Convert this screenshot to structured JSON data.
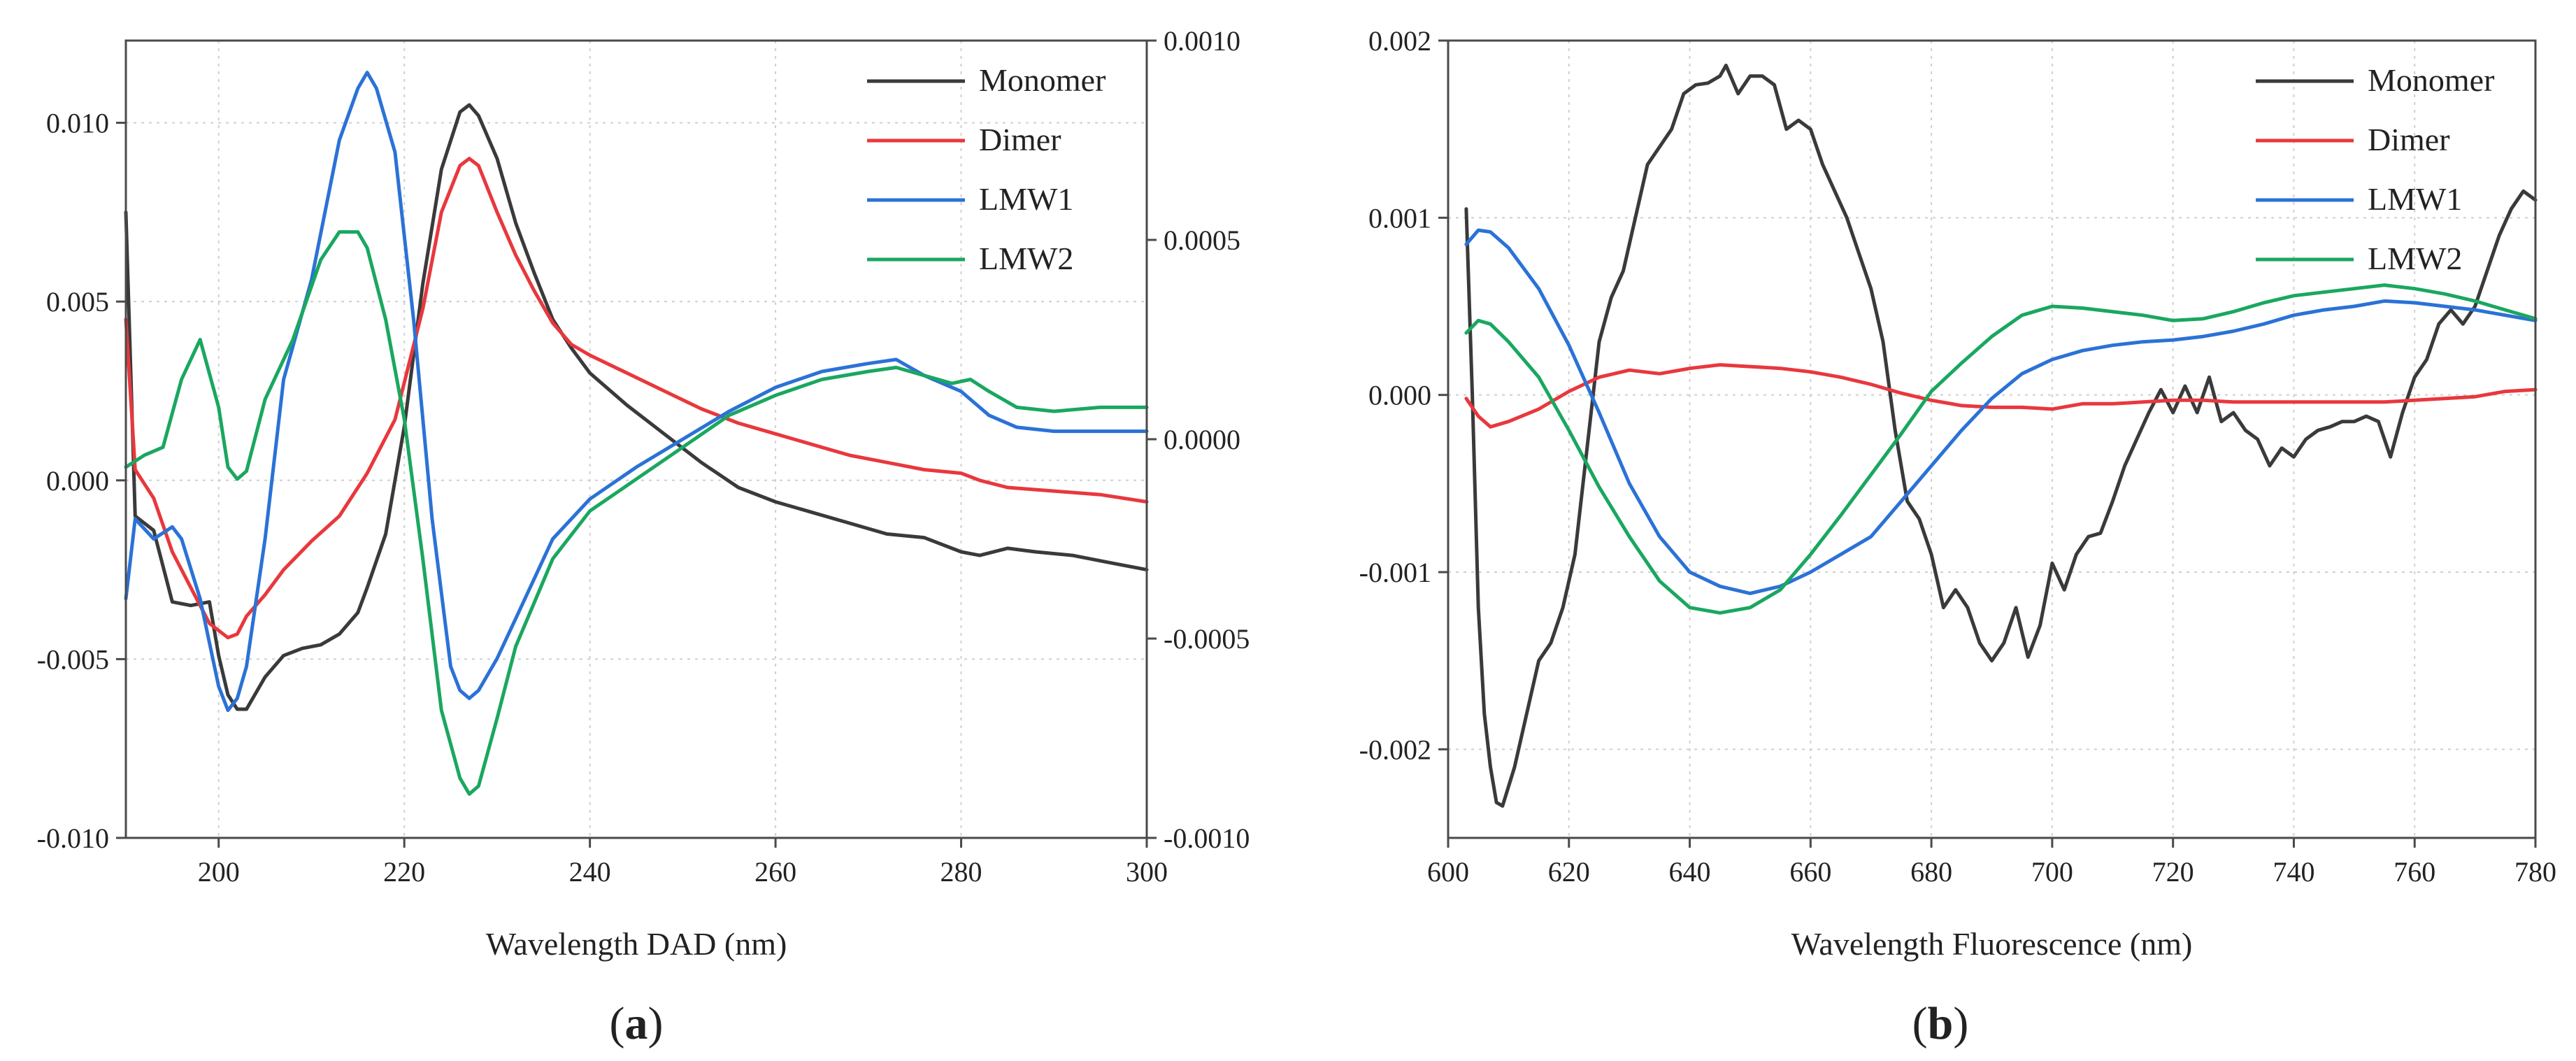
{
  "chart_data": [
    {
      "type": "line",
      "panel_label_prefix": "(",
      "panel_label": "a",
      "panel_label_suffix": ")",
      "xlabel": "Wavelength DAD (nm)",
      "xlim": [
        190,
        300
      ],
      "ylim": [
        -0.01,
        0.0123
      ],
      "y2lim": [
        -0.001,
        0.001
      ],
      "xticks": [
        "200",
        "220",
        "240",
        "260",
        "280",
        "300"
      ],
      "xtick_values": [
        200,
        220,
        240,
        260,
        280,
        300
      ],
      "yticks": [
        "0.010",
        "0.005",
        "0.000",
        "-0.005",
        "-0.010"
      ],
      "ytick_values": [
        0.01,
        0.005,
        0.0,
        -0.005,
        -0.01
      ],
      "y2ticks": [
        "0.0010",
        "0.0005",
        "0.0000",
        "-0.0005",
        "-0.0010"
      ],
      "y2tick_values": [
        0.001,
        0.0005,
        0.0,
        -0.0005,
        -0.001
      ],
      "grid": true,
      "legend_position": "top-right",
      "series": [
        {
          "name": "Monomer",
          "color": "#3a3a3a",
          "axis": "left",
          "x": [
            190,
            191,
            193,
            195,
            197,
            199,
            200,
            201,
            202,
            203,
            205,
            207,
            209,
            211,
            213,
            215,
            216,
            218,
            220,
            222,
            224,
            226,
            227,
            228,
            230,
            232,
            234,
            236,
            238,
            240,
            244,
            248,
            252,
            256,
            260,
            264,
            268,
            272,
            276,
            280,
            282,
            285,
            288,
            292,
            296,
            300
          ],
          "y": [
            0.0075,
            -0.001,
            -0.0014,
            -0.0034,
            -0.0035,
            -0.0034,
            -0.0049,
            -0.006,
            -0.0064,
            -0.0064,
            -0.0055,
            -0.0049,
            -0.0047,
            -0.0046,
            -0.0043,
            -0.0037,
            -0.003,
            -0.0015,
            0.0015,
            0.0055,
            0.0087,
            0.0103,
            0.0105,
            0.0102,
            0.009,
            0.0072,
            0.0058,
            0.0045,
            0.0037,
            0.003,
            0.0021,
            0.0013,
            0.0005,
            -0.0002,
            -0.0006,
            -0.0009,
            -0.0012,
            -0.0015,
            -0.0016,
            -0.002,
            -0.0021,
            -0.0019,
            -0.002,
            -0.0021,
            -0.0023,
            -0.0025
          ]
        },
        {
          "name": "Dimer",
          "color": "#e8383d",
          "axis": "left",
          "x": [
            190,
            191,
            193,
            195,
            197,
            199,
            201,
            202,
            203,
            205,
            207,
            210,
            213,
            216,
            219,
            222,
            224,
            226,
            227,
            228,
            230,
            232,
            234,
            236,
            238,
            240,
            244,
            248,
            252,
            256,
            260,
            264,
            268,
            272,
            276,
            280,
            282,
            285,
            290,
            295,
            300
          ],
          "y": [
            0.0045,
            0.0003,
            -0.0005,
            -0.002,
            -0.003,
            -0.004,
            -0.0044,
            -0.0043,
            -0.0038,
            -0.0032,
            -0.0025,
            -0.0017,
            -0.001,
            0.0002,
            0.0017,
            0.0048,
            0.0075,
            0.0088,
            0.009,
            0.0088,
            0.0075,
            0.0063,
            0.0053,
            0.0044,
            0.0038,
            0.0035,
            0.003,
            0.0025,
            0.002,
            0.0016,
            0.0013,
            0.001,
            0.0007,
            0.0005,
            0.0003,
            0.0002,
            0.0,
            -0.0002,
            -0.0003,
            -0.0004,
            -0.0006
          ]
        },
        {
          "name": "LMW1",
          "color": "#2b72d6",
          "axis": "right",
          "x": [
            190,
            191,
            193,
            195,
            196,
            198,
            200,
            201,
            202,
            203,
            205,
            207,
            210,
            213,
            215,
            216,
            217,
            219,
            221,
            223,
            225,
            226,
            227,
            228,
            230,
            232,
            236,
            240,
            245,
            250,
            255,
            260,
            265,
            270,
            273,
            276,
            280,
            283,
            286,
            290,
            295,
            300
          ],
          "y": [
            -0.0004,
            -0.0002,
            -0.00025,
            -0.00022,
            -0.00025,
            -0.0004,
            -0.00062,
            -0.00068,
            -0.00065,
            -0.00057,
            -0.00025,
            0.00015,
            0.0004,
            0.00075,
            0.00088,
            0.00092,
            0.00088,
            0.00072,
            0.0003,
            -0.0002,
            -0.00057,
            -0.00063,
            -0.00065,
            -0.00063,
            -0.00055,
            -0.00045,
            -0.00025,
            -0.00015,
            -7e-05,
            0.0,
            7e-05,
            0.00013,
            0.00017,
            0.00019,
            0.0002,
            0.00016,
            0.00012,
            6e-05,
            3e-05,
            2e-05,
            2e-05,
            2e-05
          ]
        },
        {
          "name": "LMW2",
          "color": "#1aa760",
          "axis": "right",
          "x": [
            190,
            192,
            194,
            196,
            198,
            200,
            201,
            202,
            203,
            205,
            208,
            211,
            213,
            215,
            216,
            218,
            220,
            222,
            224,
            226,
            227,
            228,
            230,
            232,
            236,
            240,
            245,
            250,
            255,
            260,
            265,
            270,
            273,
            276,
            279,
            281,
            283,
            286,
            290,
            295,
            300
          ],
          "y": [
            -7e-05,
            -4e-05,
            -2e-05,
            0.00015,
            0.00025,
            8e-05,
            -7e-05,
            -0.0001,
            -8e-05,
            0.0001,
            0.00025,
            0.00045,
            0.00052,
            0.00052,
            0.00048,
            0.0003,
            5e-05,
            -0.0003,
            -0.00068,
            -0.00085,
            -0.00089,
            -0.00087,
            -0.0007,
            -0.00052,
            -0.0003,
            -0.00018,
            -0.0001,
            -2e-05,
            6e-05,
            0.00011,
            0.00015,
            0.00017,
            0.00018,
            0.00016,
            0.00014,
            0.00015,
            0.00012,
            8e-05,
            7e-05,
            8e-05,
            8e-05
          ]
        }
      ]
    },
    {
      "type": "line",
      "panel_label_prefix": "(",
      "panel_label": "b",
      "panel_label_suffix": ")",
      "xlabel": "Wavelength Fluorescence (nm)",
      "xlim": [
        600,
        780
      ],
      "ylim": [
        -0.0025,
        0.002
      ],
      "xticks": [
        "600",
        "620",
        "640",
        "660",
        "680",
        "700",
        "720",
        "740",
        "760",
        "780"
      ],
      "xtick_values": [
        600,
        620,
        640,
        660,
        680,
        700,
        720,
        740,
        760,
        780
      ],
      "yticks": [
        "0.002",
        "0.001",
        "0.000",
        "-0.001",
        "-0.002"
      ],
      "ytick_values": [
        0.002,
        0.001,
        0.0,
        -0.001,
        -0.002
      ],
      "grid": true,
      "legend_position": "top-right",
      "series": [
        {
          "name": "Monomer",
          "color": "#3a3a3a",
          "axis": "left",
          "x": [
            603,
            604,
            605,
            606,
            607,
            608,
            609,
            611,
            613,
            615,
            617,
            619,
            621,
            623,
            625,
            627,
            629,
            631,
            633,
            635,
            637,
            639,
            641,
            643,
            645,
            646,
            648,
            650,
            652,
            654,
            656,
            658,
            660,
            662,
            664,
            666,
            668,
            670,
            672,
            674,
            676,
            678,
            680,
            682,
            684,
            686,
            688,
            690,
            692,
            694,
            696,
            698,
            700,
            702,
            704,
            706,
            708,
            710,
            712,
            714,
            716,
            718,
            720,
            722,
            724,
            726,
            728,
            730,
            732,
            734,
            736,
            738,
            740,
            742,
            744,
            746,
            748,
            750,
            752,
            754,
            756,
            758,
            760,
            762,
            764,
            766,
            768,
            770,
            772,
            774,
            776,
            778,
            780
          ],
          "y": [
            0.00105,
            0.0,
            -0.0012,
            -0.0018,
            -0.0021,
            -0.0023,
            -0.00232,
            -0.0021,
            -0.0018,
            -0.0015,
            -0.0014,
            -0.0012,
            -0.0009,
            -0.0003,
            0.0003,
            0.00055,
            0.0007,
            0.001,
            0.0013,
            0.0014,
            0.0015,
            0.0017,
            0.00175,
            0.00176,
            0.0018,
            0.00186,
            0.0017,
            0.0018,
            0.0018,
            0.00175,
            0.0015,
            0.00155,
            0.0015,
            0.0013,
            0.00115,
            0.001,
            0.0008,
            0.0006,
            0.0003,
            -0.0002,
            -0.0006,
            -0.0007,
            -0.0009,
            -0.0012,
            -0.0011,
            -0.0012,
            -0.0014,
            -0.0015,
            -0.0014,
            -0.0012,
            -0.00148,
            -0.0013,
            -0.00095,
            -0.0011,
            -0.0009,
            -0.0008,
            -0.00078,
            -0.0006,
            -0.0004,
            -0.00025,
            -0.0001,
            3e-05,
            -0.0001,
            5e-05,
            -0.0001,
            0.0001,
            -0.00015,
            -0.0001,
            -0.0002,
            -0.00025,
            -0.0004,
            -0.0003,
            -0.00035,
            -0.00025,
            -0.0002,
            -0.00018,
            -0.00015,
            -0.00015,
            -0.00012,
            -0.00015,
            -0.00035,
            -0.0001,
            0.0001,
            0.0002,
            0.0004,
            0.00048,
            0.0004,
            0.0005,
            0.0007,
            0.0009,
            0.00105,
            0.00115,
            0.0011
          ]
        },
        {
          "name": "Dimer",
          "color": "#e8383d",
          "axis": "left",
          "x": [
            603,
            605,
            607,
            610,
            615,
            620,
            625,
            630,
            635,
            640,
            645,
            650,
            655,
            660,
            665,
            670,
            675,
            680,
            685,
            690,
            695,
            700,
            705,
            710,
            715,
            720,
            725,
            730,
            735,
            740,
            745,
            750,
            755,
            760,
            765,
            770,
            775,
            780
          ],
          "y": [
            -2e-05,
            -0.00012,
            -0.00018,
            -0.00015,
            -8e-05,
            2e-05,
            0.0001,
            0.00014,
            0.00012,
            0.00015,
            0.00017,
            0.00016,
            0.00015,
            0.00013,
            0.0001,
            6e-05,
            1e-05,
            -3e-05,
            -6e-05,
            -7e-05,
            -7e-05,
            -8e-05,
            -5e-05,
            -5e-05,
            -4e-05,
            -3e-05,
            -3e-05,
            -4e-05,
            -4e-05,
            -4e-05,
            -4e-05,
            -4e-05,
            -4e-05,
            -3e-05,
            -2e-05,
            -1e-05,
            2e-05,
            3e-05
          ]
        },
        {
          "name": "LMW1",
          "color": "#2b72d6",
          "axis": "left",
          "x": [
            603,
            605,
            607,
            610,
            615,
            620,
            625,
            630,
            635,
            640,
            645,
            650,
            655,
            660,
            665,
            670,
            675,
            680,
            685,
            690,
            695,
            700,
            705,
            710,
            715,
            720,
            725,
            730,
            735,
            740,
            745,
            750,
            755,
            760,
            765,
            770,
            775,
            780
          ],
          "y": [
            0.00085,
            0.00093,
            0.00092,
            0.00083,
            0.0006,
            0.00028,
            -0.0001,
            -0.0005,
            -0.0008,
            -0.001,
            -0.00108,
            -0.00112,
            -0.00108,
            -0.001,
            -0.0009,
            -0.0008,
            -0.0006,
            -0.0004,
            -0.0002,
            -2e-05,
            0.00012,
            0.0002,
            0.00025,
            0.00028,
            0.0003,
            0.00031,
            0.00033,
            0.00036,
            0.0004,
            0.00045,
            0.00048,
            0.0005,
            0.00053,
            0.00052,
            0.0005,
            0.00048,
            0.00045,
            0.00042
          ]
        },
        {
          "name": "LMW2",
          "color": "#1aa760",
          "axis": "left",
          "x": [
            603,
            605,
            607,
            610,
            615,
            620,
            625,
            630,
            635,
            640,
            645,
            650,
            655,
            660,
            665,
            670,
            675,
            680,
            685,
            690,
            695,
            700,
            705,
            710,
            715,
            720,
            725,
            730,
            735,
            740,
            745,
            750,
            755,
            760,
            765,
            770,
            775,
            780
          ],
          "y": [
            0.00035,
            0.00042,
            0.0004,
            0.0003,
            0.0001,
            -0.0002,
            -0.00052,
            -0.0008,
            -0.00105,
            -0.0012,
            -0.00123,
            -0.0012,
            -0.0011,
            -0.0009,
            -0.00068,
            -0.00045,
            -0.00022,
            2e-05,
            0.00018,
            0.00033,
            0.00045,
            0.0005,
            0.00049,
            0.00047,
            0.00045,
            0.00042,
            0.00043,
            0.00047,
            0.00052,
            0.00056,
            0.00058,
            0.0006,
            0.00062,
            0.0006,
            0.00057,
            0.00053,
            0.00048,
            0.00043
          ]
        }
      ]
    }
  ]
}
